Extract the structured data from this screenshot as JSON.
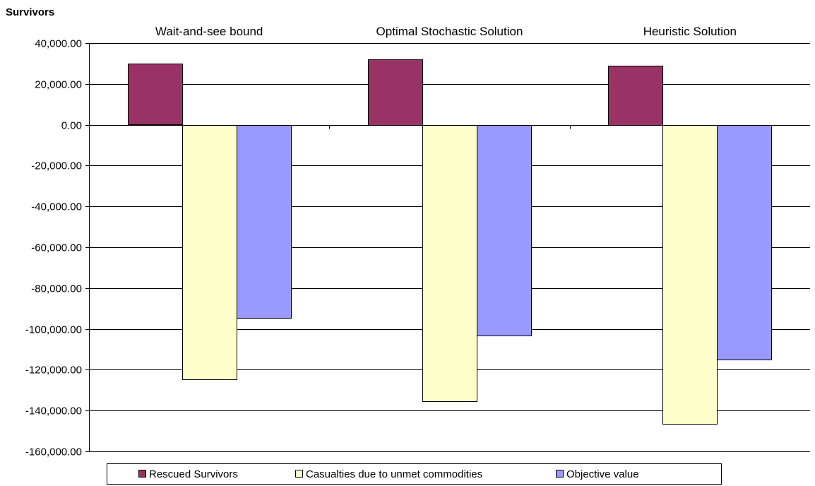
{
  "chart_data": {
    "type": "bar",
    "ylabel": "Survivors",
    "categories": [
      "Wait-and-see bound",
      "Optimal Stochastic Solution",
      "Heuristic Solution"
    ],
    "series": [
      {
        "name": "Rescued Survivors",
        "color": "#993366",
        "values": [
          29800,
          32100,
          29100
        ]
      },
      {
        "name": "Casualties due to unmet commodities",
        "color": "#FFFFCC",
        "values": [
          -124500,
          -135200,
          -146200
        ]
      },
      {
        "name": "Objective value",
        "color": "#9999FF",
        "values": [
          -94500,
          -103000,
          -114900
        ]
      }
    ],
    "ylim": [
      -160000,
      40000
    ],
    "yticks": [
      40000,
      20000,
      0,
      -20000,
      -40000,
      -60000,
      -80000,
      -100000,
      -120000,
      -140000,
      -160000
    ],
    "ytick_labels": [
      "40,000.00",
      "20,000.00",
      "0.00",
      "-20,000.00",
      "-40,000.00",
      "-60,000.00",
      "-80,000.00",
      "-100,000.00",
      "-120,000.00",
      "-140,000.00",
      "-160,000.00"
    ],
    "grid": true,
    "legend": "bottom"
  }
}
